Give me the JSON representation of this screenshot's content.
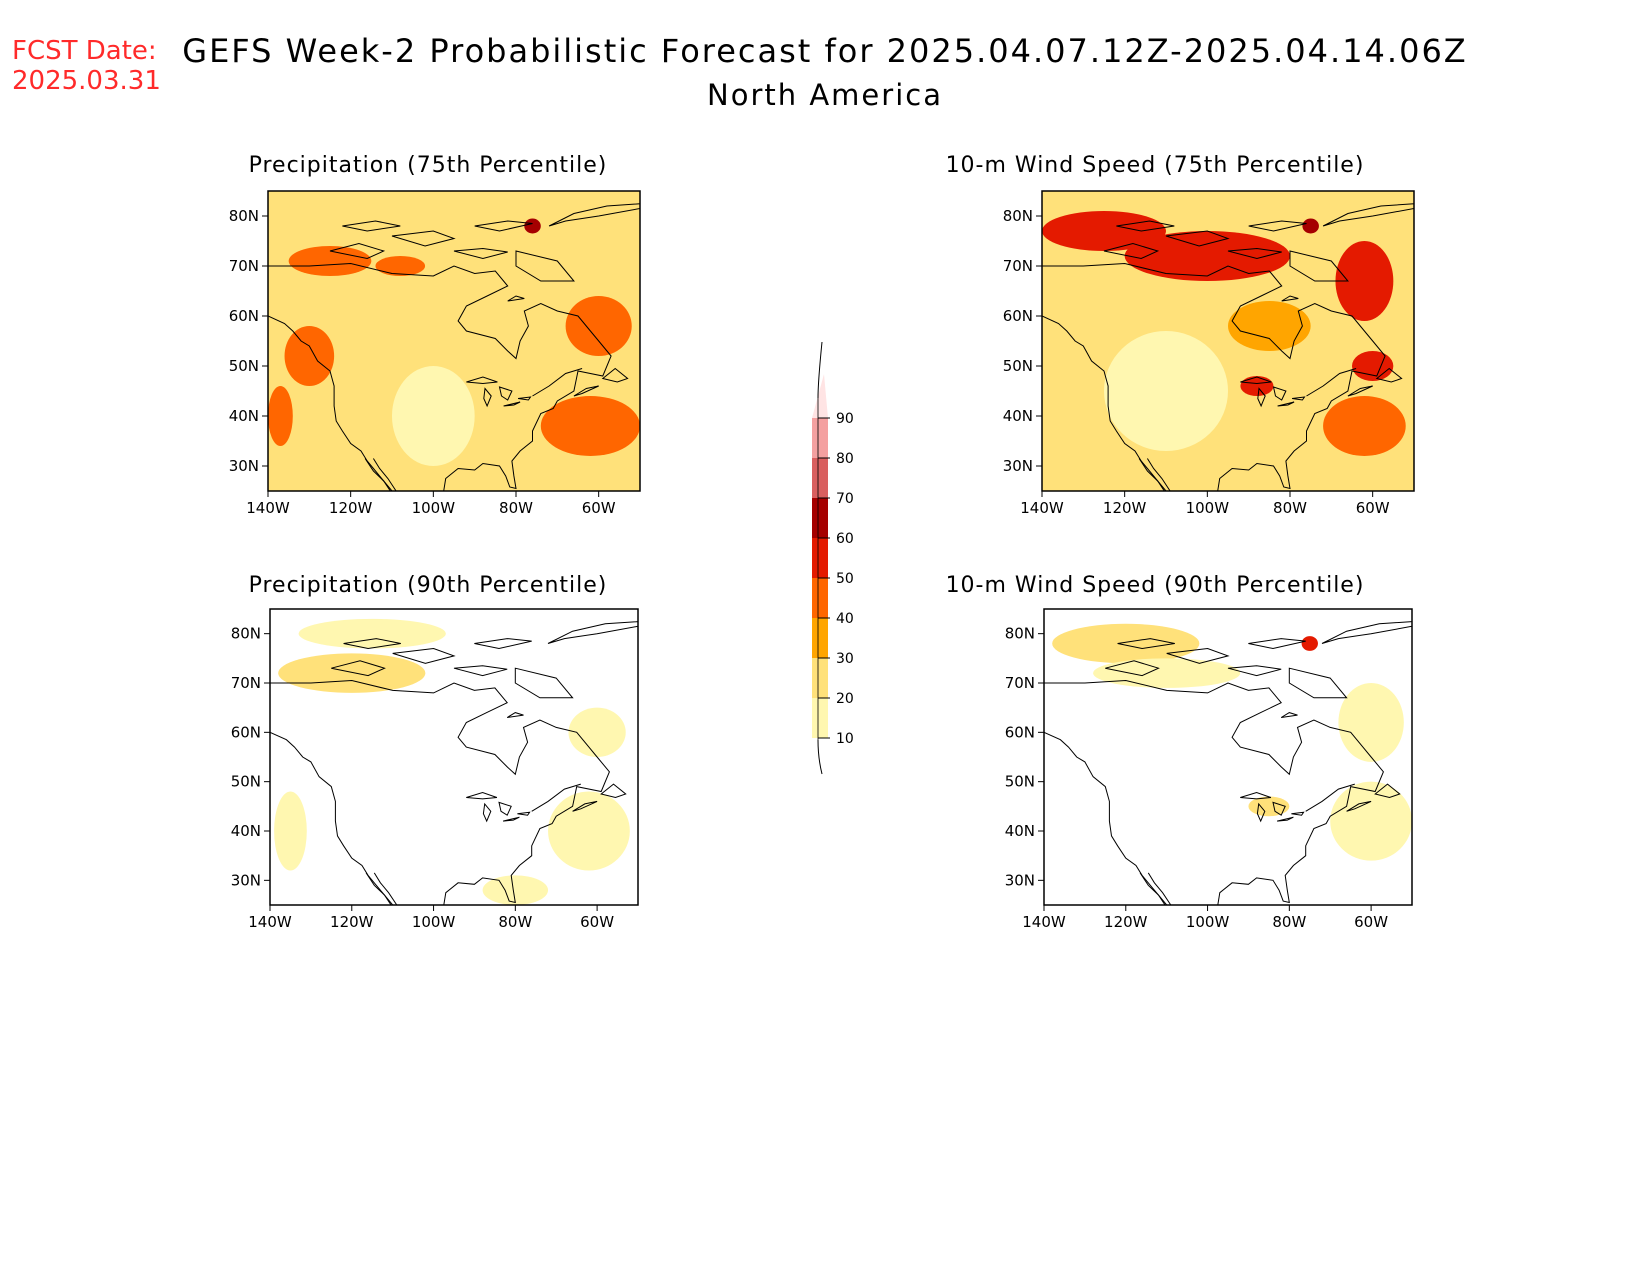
{
  "header": {
    "fcst_label": "FCST Date:",
    "fcst_date": "2025.03.31",
    "title": "GEFS Week-2 Probabilistic Forecast for 2025.04.07.12Z-2025.04.14.06Z",
    "subtitle": "North America"
  },
  "colorbar": {
    "levels": [
      10,
      20,
      30,
      40,
      50,
      60,
      70,
      80,
      90
    ],
    "colors": [
      "#fff7b0",
      "#ffe17a",
      "#ffa500",
      "#ff6600",
      "#e41a00",
      "#a50000",
      "#d95f5f",
      "#f4a0a0",
      "#ffe4e4"
    ],
    "labels": [
      "10",
      "20",
      "30",
      "40",
      "50",
      "60",
      "70",
      "80",
      "90"
    ]
  },
  "axes": {
    "lon_labels": [
      "140W",
      "120W",
      "100W",
      "80W",
      "60W"
    ],
    "lat_labels": [
      "80N",
      "70N",
      "60N",
      "50N",
      "40N",
      "30N"
    ],
    "lon_range": [
      -140,
      -50
    ],
    "lat_range": [
      25,
      85
    ]
  },
  "panels": [
    {
      "id": "precip75",
      "title": "Precipitation (75th Percentile)",
      "base_color": "#ffe17a",
      "patches": [
        {
          "lon": -125,
          "lat": 71,
          "rx": 10,
          "ry": 3,
          "level": 3
        },
        {
          "lon": -108,
          "lat": 70,
          "rx": 6,
          "ry": 2,
          "level": 3
        },
        {
          "lon": -76,
          "lat": 78,
          "rx": 2,
          "ry": 1.5,
          "level": 5
        },
        {
          "lon": -60,
          "lat": 58,
          "rx": 8,
          "ry": 6,
          "level": 3
        },
        {
          "lon": -62,
          "lat": 38,
          "rx": 12,
          "ry": 6,
          "level": 3
        },
        {
          "lon": -137,
          "lat": 40,
          "rx": 3,
          "ry": 6,
          "level": 3
        },
        {
          "lon": -100,
          "lat": 40,
          "rx": 10,
          "ry": 10,
          "level": 0
        },
        {
          "lon": -85,
          "lat": 60,
          "rx": 8,
          "ry": 6,
          "level": 1
        },
        {
          "lon": -130,
          "lat": 52,
          "rx": 6,
          "ry": 6,
          "level": 3
        }
      ]
    },
    {
      "id": "wind75",
      "title": "10-m Wind Speed (75th Percentile)",
      "base_color": "#ffe17a",
      "patches": [
        {
          "lon": -125,
          "lat": 77,
          "rx": 15,
          "ry": 4,
          "level": 4
        },
        {
          "lon": -100,
          "lat": 72,
          "rx": 20,
          "ry": 5,
          "level": 4
        },
        {
          "lon": -62,
          "lat": 67,
          "rx": 7,
          "ry": 8,
          "level": 4
        },
        {
          "lon": -75,
          "lat": 78,
          "rx": 2,
          "ry": 1.5,
          "level": 5
        },
        {
          "lon": -60,
          "lat": 50,
          "rx": 5,
          "ry": 3,
          "level": 4
        },
        {
          "lon": -62,
          "lat": 38,
          "rx": 10,
          "ry": 6,
          "level": 3
        },
        {
          "lon": -88,
          "lat": 46,
          "rx": 4,
          "ry": 2,
          "level": 4
        },
        {
          "lon": -110,
          "lat": 45,
          "rx": 15,
          "ry": 12,
          "level": 0
        },
        {
          "lon": -85,
          "lat": 58,
          "rx": 10,
          "ry": 5,
          "level": 2
        }
      ]
    },
    {
      "id": "precip90",
      "title": "Precipitation (90th Percentile)",
      "base_color": "#ffffff",
      "patches": [
        {
          "lon": -120,
          "lat": 72,
          "rx": 18,
          "ry": 4,
          "level": 1
        },
        {
          "lon": -115,
          "lat": 80,
          "rx": 18,
          "ry": 3,
          "level": 0
        },
        {
          "lon": -62,
          "lat": 40,
          "rx": 10,
          "ry": 8,
          "level": 0
        },
        {
          "lon": -135,
          "lat": 40,
          "rx": 4,
          "ry": 8,
          "level": 0
        },
        {
          "lon": -60,
          "lat": 60,
          "rx": 7,
          "ry": 5,
          "level": 0
        },
        {
          "lon": -80,
          "lat": 28,
          "rx": 8,
          "ry": 3,
          "level": 0
        }
      ]
    },
    {
      "id": "wind90",
      "title": "10-m Wind Speed (90th Percentile)",
      "base_color": "#ffffff",
      "patches": [
        {
          "lon": -120,
          "lat": 78,
          "rx": 18,
          "ry": 4,
          "level": 1
        },
        {
          "lon": -110,
          "lat": 72,
          "rx": 18,
          "ry": 3,
          "level": 0
        },
        {
          "lon": -75,
          "lat": 78,
          "rx": 2,
          "ry": 1.5,
          "level": 4
        },
        {
          "lon": -60,
          "lat": 62,
          "rx": 8,
          "ry": 8,
          "level": 0
        },
        {
          "lon": -60,
          "lat": 42,
          "rx": 10,
          "ry": 8,
          "level": 0
        },
        {
          "lon": -85,
          "lat": 45,
          "rx": 5,
          "ry": 2,
          "level": 1
        }
      ]
    }
  ]
}
